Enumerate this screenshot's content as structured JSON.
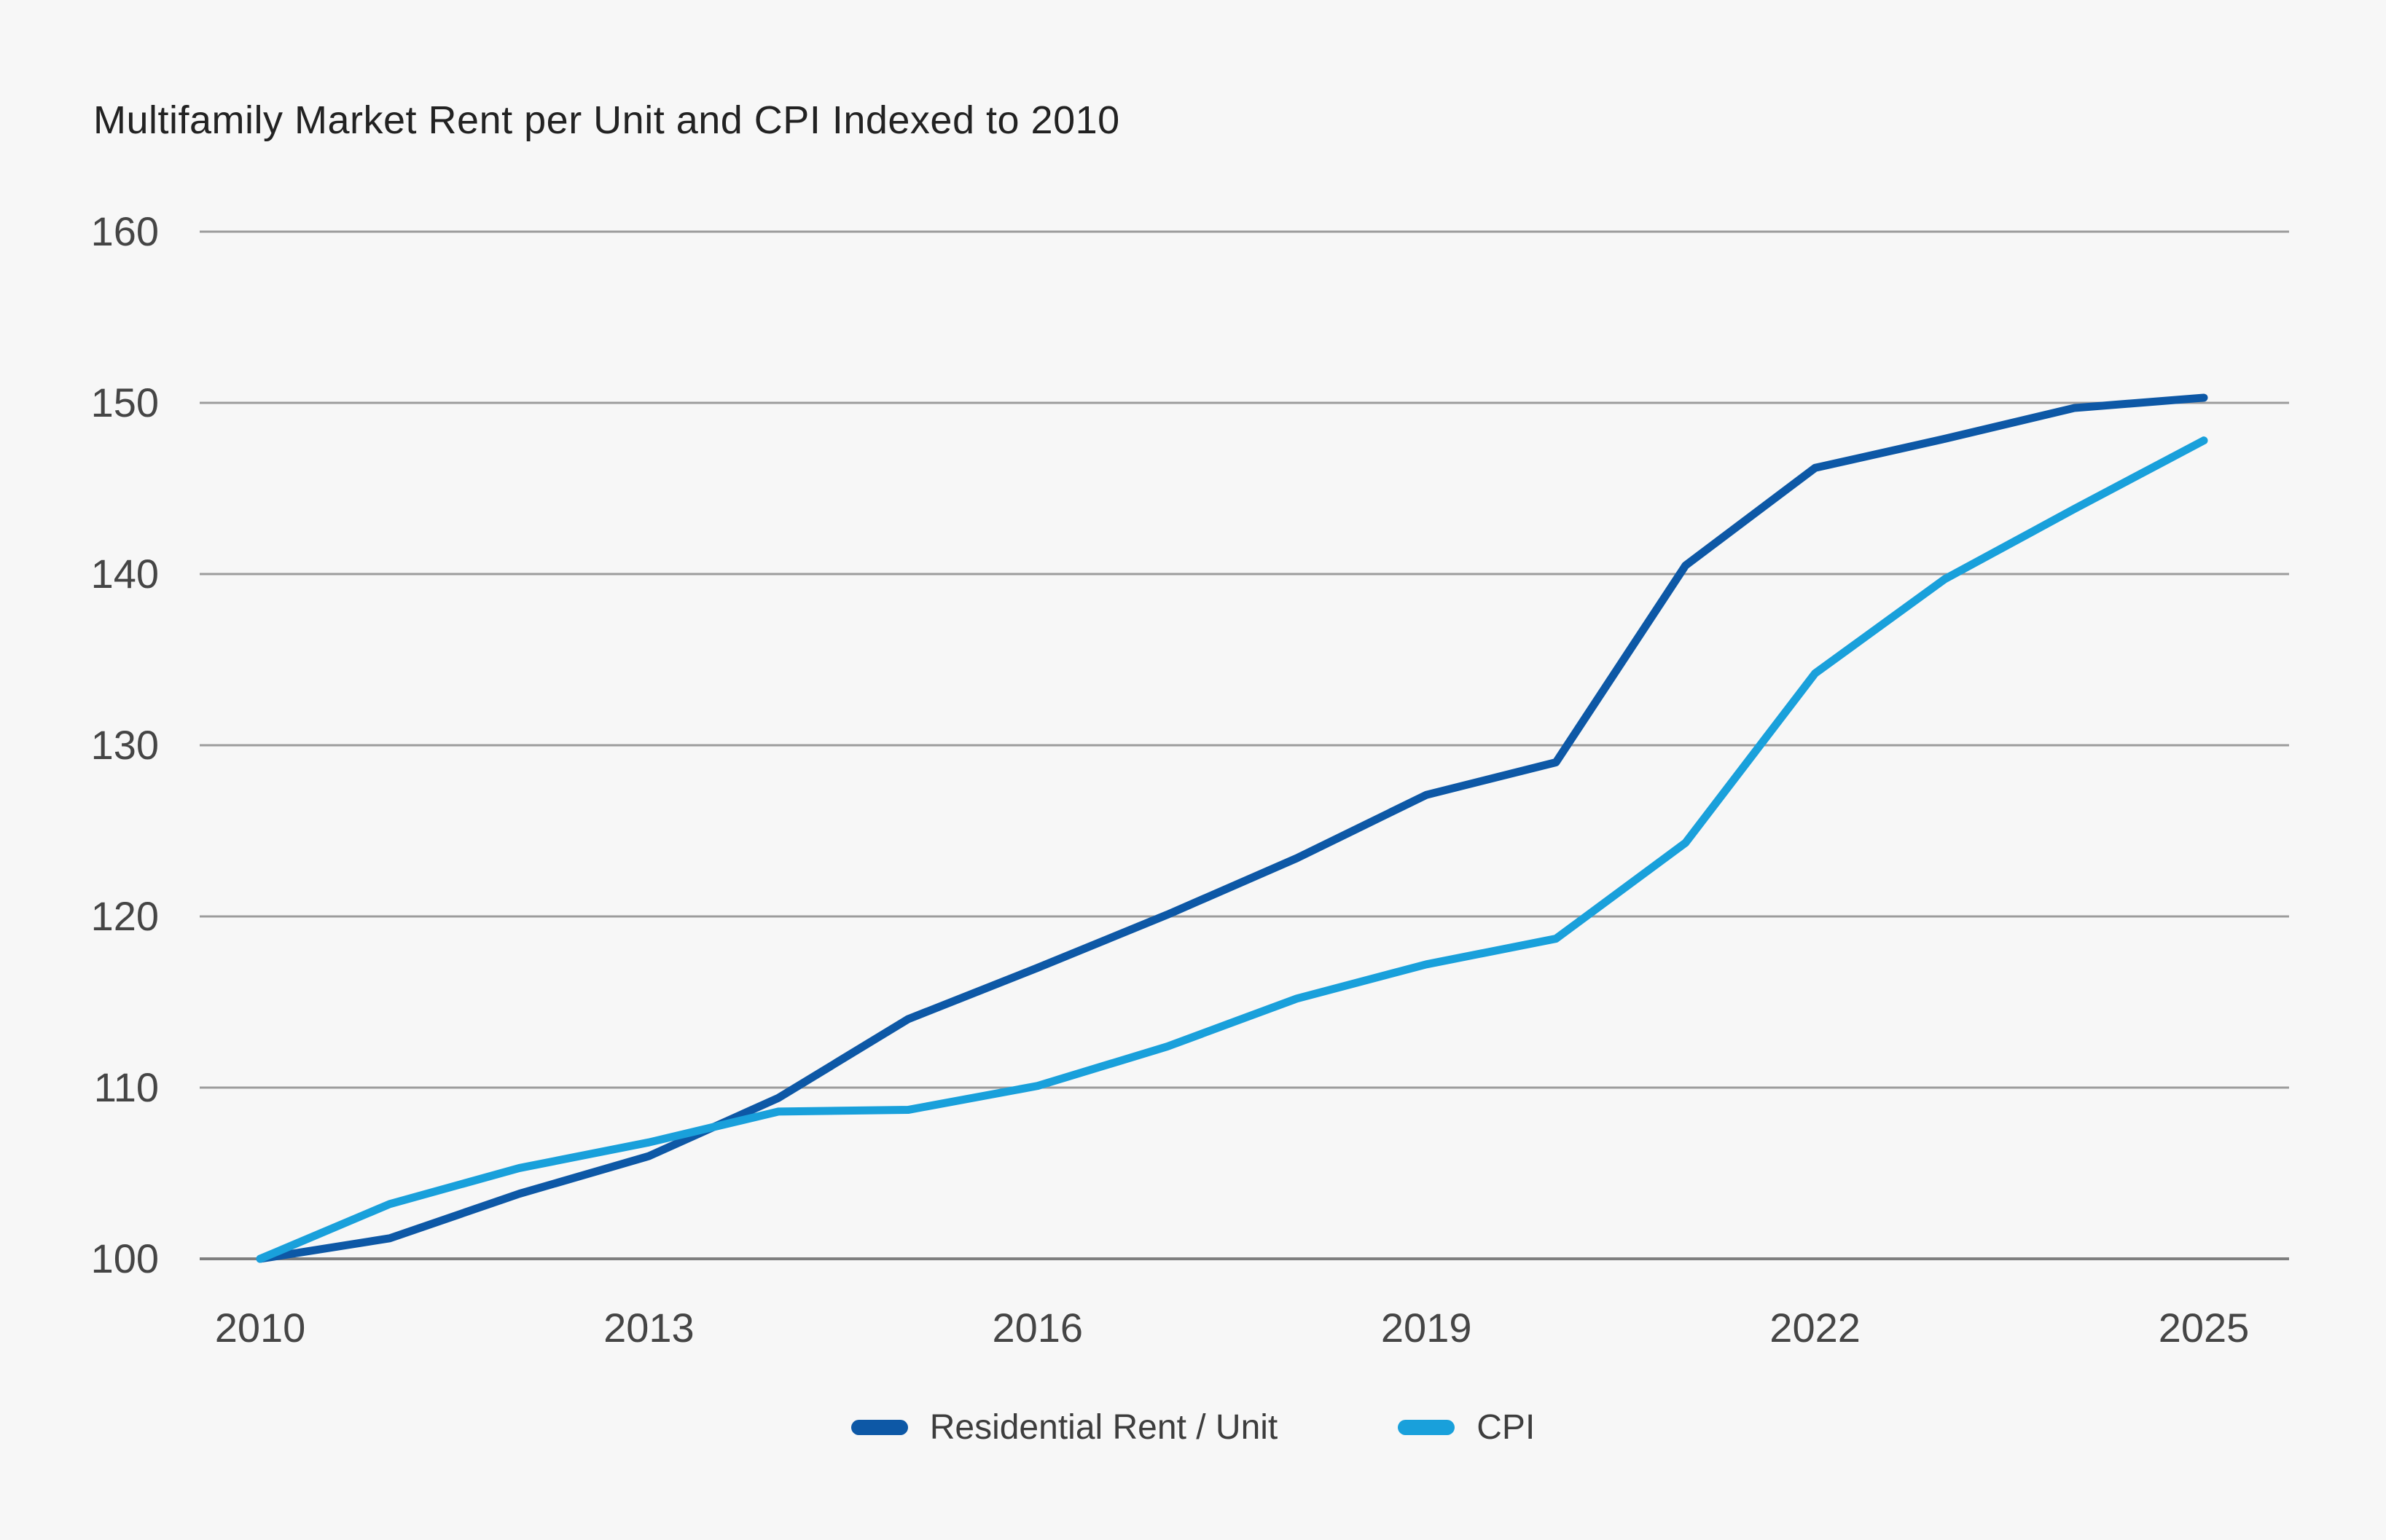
{
  "title": "Multifamily Market Rent per Unit and CPI Indexed to 2010",
  "colors": {
    "background": "#f7f7f7",
    "rent_line": "#0d58a6",
    "cpi_line": "#19a0db",
    "gridline": "#9c9c9c",
    "baseline": "#7f7f7f",
    "tick_label": "#454545",
    "title_text": "#222222",
    "legend_text": "#3d3d3d"
  },
  "legend": {
    "items": [
      {
        "label": "Residential Rent / Unit",
        "color": "#0d58a6"
      },
      {
        "label": "CPI",
        "color": "#19a0db"
      }
    ]
  },
  "chart_data": {
    "type": "line",
    "title": "Multifamily Market Rent per Unit and CPI Indexed to 2010",
    "x": [
      2010,
      2011,
      2012,
      2013,
      2014,
      2015,
      2016,
      2017,
      2018,
      2019,
      2020,
      2021,
      2022,
      2023,
      2024,
      2025
    ],
    "series": [
      {
        "name": "Residential Rent / Unit",
        "color": "#0d58a6",
        "values": [
          100,
          101.2,
          103.8,
          106,
          109.4,
          114,
          117,
          120.1,
          123.4,
          127.1,
          129,
          140.5,
          146.2,
          147.9,
          149.7,
          150.3
        ]
      },
      {
        "name": "CPI",
        "color": "#19a0db",
        "values": [
          100,
          103.2,
          105.3,
          106.8,
          108.6,
          108.7,
          110.1,
          112.4,
          115.2,
          117.2,
          118.7,
          124.3,
          134.2,
          139.7,
          143.8,
          147.8
        ]
      }
    ],
    "xticks": [
      2010,
      2013,
      2016,
      2019,
      2022,
      2025
    ],
    "yticks": [
      100,
      110,
      120,
      130,
      140,
      150,
      160
    ],
    "xlim": [
      2010,
      2025
    ],
    "ylim": [
      100,
      160
    ],
    "xlabel": "",
    "ylabel": "",
    "grid": true,
    "legend_position": "bottom"
  }
}
